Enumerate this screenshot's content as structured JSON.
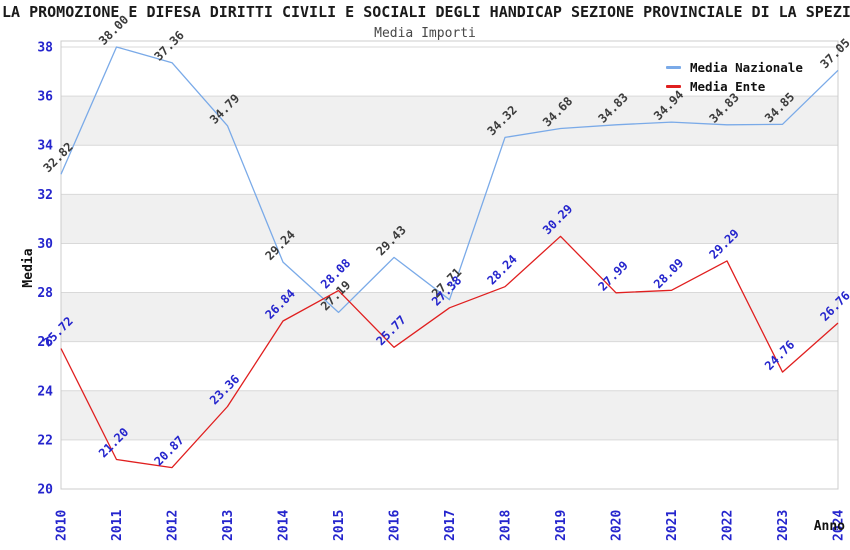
{
  "title": "LA PROMOZIONE E DIFESA DIRITTI CIVILI E SOCIALI DEGLI HANDICAP SEZIONE PROVINCIALE DI LA SPEZIA",
  "subtitle": "Media Importi",
  "legend": [
    {
      "label": "Media Nazionale",
      "color": "#7aaae8"
    },
    {
      "label": "Media Ente",
      "color": "#e01f1f"
    }
  ],
  "colors": {
    "background": "#ffffff",
    "stripe_band": "#f0f0f0",
    "gridline": "#d9d9d9",
    "plot_frame": "#cccccc",
    "tick_label": "#2525cd",
    "series_nazionale_line": "#7aaae8",
    "series_nazionale_point_label": "#3c3c3c",
    "series_ente_line": "#e01f1f",
    "series_ente_point_label": "#2525cd",
    "axis_title": "#111111"
  },
  "chart_data": {
    "type": "line",
    "title": "LA PROMOZIONE E DIFESA DIRITTI CIVILI E SOCIALI DEGLI HANDICAP SEZIONE PROVINCIALE DI LA SPEZIA",
    "subtitle": "Media Importi",
    "xlabel": "Anno",
    "ylabel": "Media",
    "ylim": [
      20,
      38
    ],
    "y_ticks": [
      20,
      22,
      24,
      26,
      28,
      30,
      32,
      34,
      36,
      38
    ],
    "grid": "horizontal-only",
    "stripe_bands": [
      [
        36,
        34
      ],
      [
        32,
        30
      ],
      [
        28,
        26
      ],
      [
        24,
        22
      ]
    ],
    "legend_position": "top-right-inside",
    "point_label_rotation_deg": -45,
    "x_tick_rotation_deg": -90,
    "x": [
      2010,
      2011,
      2012,
      2013,
      2014,
      2015,
      2016,
      2017,
      2018,
      2019,
      2020,
      2021,
      2022,
      2023,
      2024
    ],
    "series": [
      {
        "name": "Media Nazionale",
        "color": "#7aaae8",
        "label_color": "#3c3c3c",
        "values": [
          32.82,
          38.0,
          37.36,
          34.79,
          29.24,
          27.19,
          29.43,
          27.71,
          34.32,
          34.68,
          34.83,
          34.94,
          34.83,
          34.85,
          37.05
        ],
        "labels": [
          "32.82",
          "38.00",
          "37.36",
          "34.79",
          "29.24",
          "27.19",
          "29.43",
          "27.71",
          "34.32",
          "34.68",
          "34.83",
          "34.94",
          "34.83",
          "34.85",
          "37.05"
        ]
      },
      {
        "name": "Media Ente",
        "color": "#e01f1f",
        "label_color": "#2525cd",
        "values": [
          25.72,
          21.2,
          20.87,
          23.36,
          26.84,
          28.08,
          25.77,
          27.38,
          28.24,
          30.29,
          27.99,
          28.09,
          29.29,
          24.76,
          26.76
        ],
        "labels": [
          "25.72",
          "21.20",
          "20.87",
          "23.36",
          "26.84",
          "28.08",
          "25.77",
          "27.38",
          "28.24",
          "30.29",
          "27.99",
          "28.09",
          "29.29",
          "24.76",
          "26.76"
        ]
      }
    ]
  }
}
